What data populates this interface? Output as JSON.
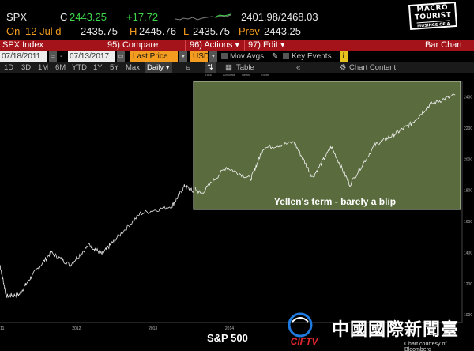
{
  "quote": {
    "ticker": "SPX",
    "c_label": "C",
    "last": "2443.25",
    "change": "+17.72",
    "range": "2401.98/2468.03",
    "on_label": "On",
    "date": "12 Jul d",
    "open": "2435.75",
    "h_label": "H",
    "high": "2445.76",
    "l_label": "L",
    "low": "2435.75",
    "prev_label": "Prev",
    "prev": "2443.25"
  },
  "logo": {
    "line1": "MACRO",
    "line2": "TOURIST",
    "line3": "MUSINGS OF A"
  },
  "function_bar": {
    "security": "SPX Index",
    "compare": "95) Compare",
    "actions": "96) Actions ▾",
    "edit": "97) Edit ▾",
    "bar_chart": "Bar Chart"
  },
  "controls": {
    "start_date": "07/18/2011",
    "end_date": "07/13/2017",
    "price_type": "Last Price",
    "currency": "USD",
    "mov_avgs": "Mov Avgs",
    "key_events": "Key Events",
    "key_events_icon": "i"
  },
  "toolbar": {
    "periods": [
      "1D",
      "3D",
      "1M",
      "6M",
      "YTD",
      "1Y",
      "5Y",
      "Max"
    ],
    "frequency": "Daily ▾",
    "table": "Table",
    "chart_content": "Chart Content"
  },
  "annotation": "Yellen's term - barely a blip",
  "mini_tools": [
    "Track",
    "Annotate",
    "News",
    "Zoom"
  ],
  "caption": "S&P 500",
  "watermark": {
    "ciftv": "CIFTV",
    "chinese": "中國國際新聞臺",
    "courtesy": "Chart courtesy of Bloomberg"
  },
  "colors": {
    "function_bar": "#a5131a",
    "positive": "#3fd64a",
    "label_orange": "#f39c1f",
    "highlight": "#5a6b3e"
  },
  "chart_data": {
    "type": "line",
    "title": "",
    "xlabel": "",
    "ylabel": "",
    "x_ticks": [
      "2011",
      "2012",
      "2013",
      "2014"
    ],
    "y_ticks": [
      1000,
      1200,
      1400,
      1600,
      1800,
      2000,
      2200,
      2400
    ],
    "ylim": [
      950,
      2500
    ],
    "grid": false,
    "series": [
      {
        "values": [
          {
            "x": "2011-07",
            "y": 1320
          },
          {
            "x": "2011-08",
            "y": 1120
          },
          {
            "x": "2011-10",
            "y": 1130
          },
          {
            "x": "2011-12",
            "y": 1250
          },
          {
            "x": "2012-03",
            "y": 1400
          },
          {
            "x": "2012-06",
            "y": 1320
          },
          {
            "x": "2012-09",
            "y": 1450
          },
          {
            "x": "2012-11",
            "y": 1390
          },
          {
            "x": "2013-01",
            "y": 1480
          },
          {
            "x": "2013-05",
            "y": 1650
          },
          {
            "x": "2013-10",
            "y": 1700
          },
          {
            "x": "2013-12",
            "y": 1830
          },
          {
            "x": "2014-02",
            "y": 1770
          },
          {
            "x": "2014-06",
            "y": 1950
          },
          {
            "x": "2014-10",
            "y": 1870
          },
          {
            "x": "2014-12",
            "y": 2080
          },
          {
            "x": "2015-05",
            "y": 2120
          },
          {
            "x": "2015-08",
            "y": 1880
          },
          {
            "x": "2015-11",
            "y": 2090
          },
          {
            "x": "2016-02",
            "y": 1830
          },
          {
            "x": "2016-06",
            "y": 2100
          },
          {
            "x": "2016-09",
            "y": 2170
          },
          {
            "x": "2016-12",
            "y": 2250
          },
          {
            "x": "2017-03",
            "y": 2380
          },
          {
            "x": "2017-07",
            "y": 2443
          }
        ]
      }
    ]
  }
}
